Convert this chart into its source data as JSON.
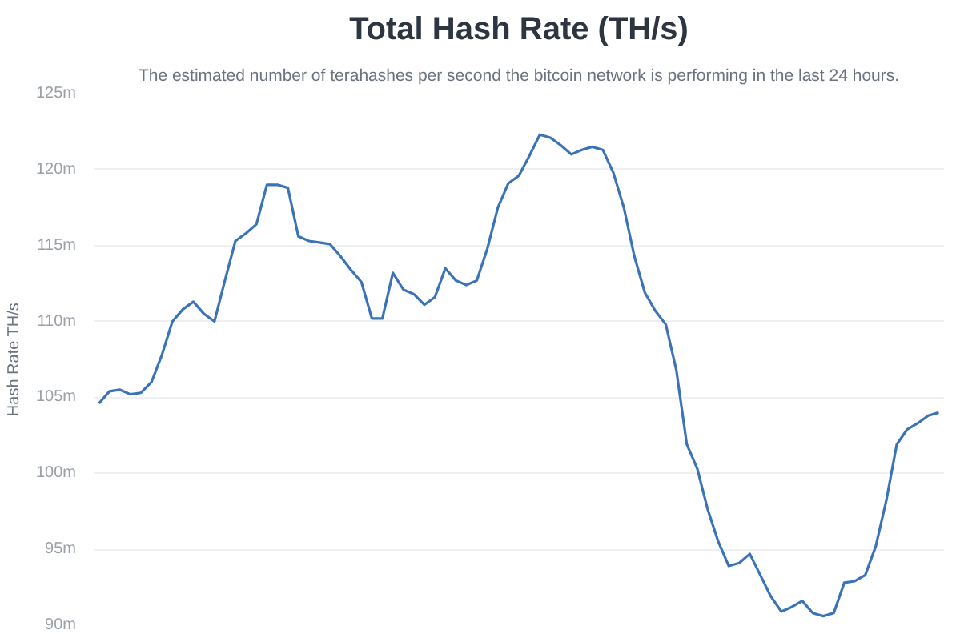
{
  "chart_data": {
    "type": "line",
    "title": "Total Hash Rate (TH/s)",
    "subtitle": "The estimated number of terahashes per second the bitcoin network is performing in the last 24 hours.",
    "ylabel": "Hash Rate TH/s",
    "categories": [
      null,
      null,
      null,
      null,
      null,
      null,
      null,
      null,
      null,
      null,
      null,
      null,
      null,
      null,
      null,
      null,
      null,
      null,
      null,
      null,
      null,
      null,
      null,
      null,
      null,
      null,
      null,
      null,
      null,
      null,
      null,
      null,
      null,
      null,
      null,
      null,
      null,
      null,
      null,
      null,
      null,
      null,
      null,
      null,
      null,
      null,
      null,
      null,
      null,
      null,
      null,
      null,
      null,
      null,
      null,
      null,
      null,
      null,
      null,
      null,
      null,
      null,
      null,
      null,
      null,
      null,
      null,
      null,
      null,
      null,
      null,
      null,
      null,
      null,
      null,
      null,
      null,
      null,
      null,
      null,
      null
    ],
    "series": [
      {
        "color": "#3b73b9",
        "values": [
          104.6,
          105.4,
          105.5,
          105.2,
          105.3,
          106.0,
          107.8,
          110.0,
          110.8,
          111.3,
          110.5,
          110.0,
          112.7,
          115.3,
          115.8,
          116.4,
          119.0,
          119.0,
          118.8,
          115.6,
          115.3,
          115.2,
          115.1,
          114.3,
          113.4,
          112.6,
          110.2,
          110.2,
          113.2,
          112.1,
          111.8,
          111.1,
          111.6,
          113.5,
          112.7,
          112.4,
          112.7,
          114.8,
          117.5,
          119.1,
          119.6,
          120.9,
          122.3,
          122.1,
          121.6,
          121.0,
          121.3,
          121.5,
          121.3,
          119.8,
          117.5,
          114.3,
          111.9,
          110.7,
          109.8,
          106.8,
          101.9,
          100.3,
          97.6,
          95.5,
          93.9,
          94.1,
          94.7,
          93.3,
          91.9,
          90.9,
          91.2,
          91.6,
          90.8,
          90.6,
          90.8,
          92.8,
          92.9,
          93.3,
          95.2,
          98.2,
          101.9,
          102.9,
          103.3,
          103.8,
          104.0
        ]
      }
    ],
    "ylim": [
      90,
      125
    ],
    "yticks": [
      {
        "value": 90,
        "label": "90m"
      },
      {
        "value": 95,
        "label": "95m"
      },
      {
        "value": 100,
        "label": "100m"
      },
      {
        "value": 105,
        "label": "105m"
      },
      {
        "value": 110,
        "label": "110m"
      },
      {
        "value": 115,
        "label": "115m"
      },
      {
        "value": 120,
        "label": "120m"
      },
      {
        "value": 125,
        "label": "125m"
      }
    ],
    "grid": "y",
    "line_style": "solid"
  }
}
